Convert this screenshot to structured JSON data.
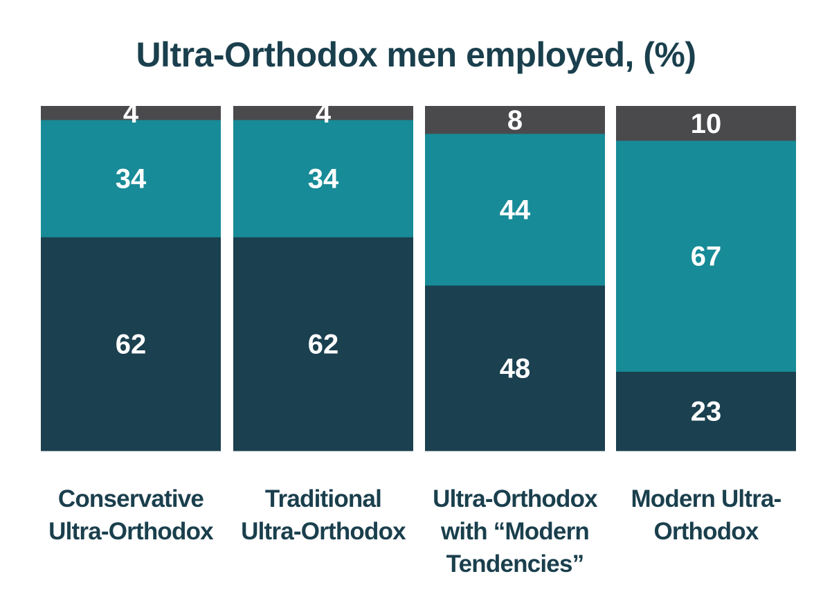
{
  "chart_data": {
    "type": "bar",
    "stacked": true,
    "normalized_percent": true,
    "title": "Ultra-Orthodox men employed, (%)",
    "xlabel": "",
    "ylabel": "",
    "ylim": [
      0,
      100
    ],
    "grid": false,
    "legend": "none",
    "categories": [
      [
        "Conservative",
        "Ultra-Orthodox"
      ],
      [
        "Traditional",
        "Ultra-Orthodox"
      ],
      [
        "Ultra-Orthodox",
        "with “Modern",
        "Tendencies”"
      ],
      [
        "Modern Ultra-",
        "Orthodox"
      ]
    ],
    "series": [
      {
        "values": [
          62,
          62,
          48,
          23
        ],
        "color": "#1b404f"
      },
      {
        "values": [
          34,
          34,
          44,
          67
        ],
        "color": "#178b97"
      },
      {
        "values": [
          4,
          4,
          8,
          10
        ],
        "color": "#4a4a4d"
      }
    ],
    "label_color": "#ffffff"
  }
}
